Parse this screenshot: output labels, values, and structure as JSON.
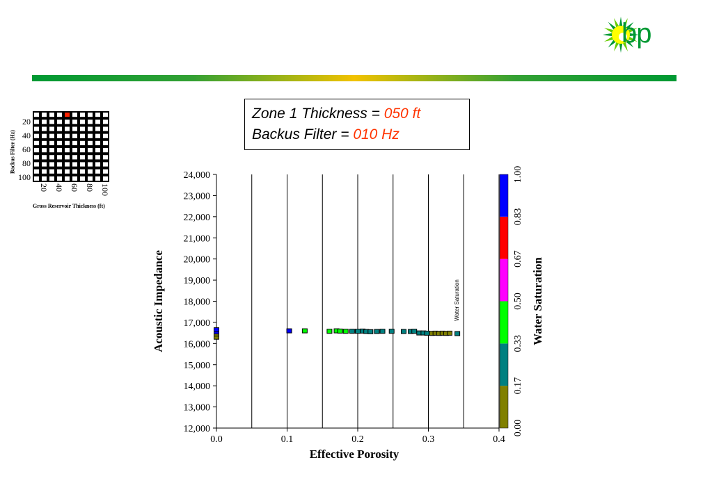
{
  "logo": {
    "text": "bp",
    "icon": "bp-helios-sun-icon",
    "color": "#009933"
  },
  "title_box": {
    "line1_prefix": "Zone 1 Thickness = ",
    "line1_value": "050 ft",
    "line2_prefix": "Backus Filter = ",
    "line2_value": "010 Hz"
  },
  "selector_grid": {
    "y_title": "Backus Filter (Hz)",
    "x_title": "Gross Reservoir Thickness (ft)",
    "y_labels": [
      "20",
      "40",
      "60",
      "80",
      "100"
    ],
    "x_labels": [
      "20",
      "40",
      "60",
      "80",
      "100"
    ],
    "rows": 10,
    "cols": 10,
    "selected": {
      "row": 0,
      "col": 4,
      "color": "#ff2200"
    }
  },
  "colorbar": {
    "title": "Water Saturation",
    "tick_labels": [
      "0.00",
      "0.17",
      "0.33",
      "0.50",
      "0.67",
      "0.83",
      "1.00"
    ],
    "colors": [
      "#808000",
      "#008080",
      "#00ff00",
      "#ff00ff",
      "#ff0000",
      "#0000ff"
    ]
  },
  "chart_data": {
    "type": "scatter",
    "xlabel": "Effective Porosity",
    "ylabel": "Acoustic Impedance",
    "xlim": [
      0.0,
      0.4
    ],
    "ylim": [
      12000,
      24000
    ],
    "x_ticks": [
      "0.0",
      "0.1",
      "0.2",
      "0.3",
      "0.4"
    ],
    "y_ticks": [
      "12,000",
      "13,000",
      "14,000",
      "15,000",
      "16,000",
      "17,000",
      "18,000",
      "19,000",
      "20,000",
      "21,000",
      "22,000",
      "23,000",
      "24,000"
    ],
    "annotation": "Water Saturation",
    "color_by": "water_saturation",
    "points": [
      {
        "x": 0.0,
        "y": 16300,
        "sw": 0.05
      },
      {
        "x": 0.0,
        "y": 16450,
        "sw": 0.05
      },
      {
        "x": 0.0,
        "y": 16550,
        "sw": 0.95
      },
      {
        "x": 0.0,
        "y": 16650,
        "sw": 0.95
      },
      {
        "x": 0.103,
        "y": 16600,
        "sw": 0.95
      },
      {
        "x": 0.125,
        "y": 16600,
        "sw": 0.4
      },
      {
        "x": 0.16,
        "y": 16580,
        "sw": 0.4
      },
      {
        "x": 0.17,
        "y": 16600,
        "sw": 0.4
      },
      {
        "x": 0.175,
        "y": 16590,
        "sw": 0.4
      },
      {
        "x": 0.183,
        "y": 16580,
        "sw": 0.4
      },
      {
        "x": 0.192,
        "y": 16580,
        "sw": 0.25
      },
      {
        "x": 0.2,
        "y": 16580,
        "sw": 0.25
      },
      {
        "x": 0.207,
        "y": 16590,
        "sw": 0.25
      },
      {
        "x": 0.212,
        "y": 16570,
        "sw": 0.25
      },
      {
        "x": 0.218,
        "y": 16560,
        "sw": 0.25
      },
      {
        "x": 0.227,
        "y": 16570,
        "sw": 0.25
      },
      {
        "x": 0.235,
        "y": 16580,
        "sw": 0.25
      },
      {
        "x": 0.248,
        "y": 16580,
        "sw": 0.25
      },
      {
        "x": 0.265,
        "y": 16570,
        "sw": 0.25
      },
      {
        "x": 0.275,
        "y": 16570,
        "sw": 0.25
      },
      {
        "x": 0.28,
        "y": 16580,
        "sw": 0.25
      },
      {
        "x": 0.287,
        "y": 16500,
        "sw": 0.25
      },
      {
        "x": 0.293,
        "y": 16500,
        "sw": 0.25
      },
      {
        "x": 0.298,
        "y": 16490,
        "sw": 0.25
      },
      {
        "x": 0.305,
        "y": 16480,
        "sw": 0.05
      },
      {
        "x": 0.31,
        "y": 16490,
        "sw": 0.05
      },
      {
        "x": 0.315,
        "y": 16480,
        "sw": 0.05
      },
      {
        "x": 0.32,
        "y": 16490,
        "sw": 0.05
      },
      {
        "x": 0.325,
        "y": 16480,
        "sw": 0.05
      },
      {
        "x": 0.33,
        "y": 16490,
        "sw": 0.05
      },
      {
        "x": 0.341,
        "y": 16470,
        "sw": 0.25
      }
    ]
  }
}
